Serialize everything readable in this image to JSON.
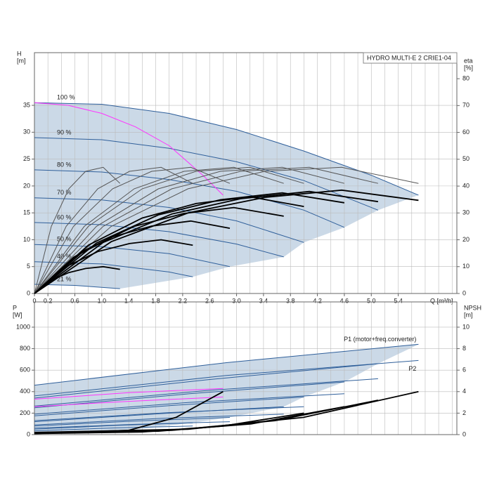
{
  "chart_data": [
    {
      "type": "line",
      "title": "HYDRO MULTI-E 2 CRIE1-04",
      "ylabel": [
        "H",
        "[m]"
      ],
      "y2label": [
        "eta",
        "[%]"
      ],
      "xlabel": "Q [m³/h]",
      "xlim": [
        0,
        6.27
      ],
      "ylim": [
        0,
        44.8
      ],
      "y2lim": [
        0,
        89.7
      ],
      "xticks": [
        0,
        0.2,
        0.6,
        {
          "value": 1,
          "label": "1.0"
        },
        1.4,
        1.8,
        2.2,
        2.6,
        {
          "value": 3,
          "label": "3.0"
        },
        3.4,
        3.8,
        4.2,
        4.6,
        {
          "value": 5,
          "label": "5.0"
        },
        5.4
      ],
      "xgrid": [
        0.2,
        0.4,
        0.6,
        0.8,
        1,
        1.2,
        1.4,
        1.6,
        1.8,
        2,
        2.2,
        2.4,
        2.6,
        2.8,
        3,
        3.2,
        3.4,
        3.6,
        3.8,
        4,
        4.2,
        4.4,
        4.6,
        4.8,
        5,
        5.2,
        5.4,
        5.6,
        5.8,
        6,
        6.2
      ],
      "yticks": [
        0,
        5,
        10,
        15,
        20,
        25,
        30,
        35
      ],
      "y2ticks": [
        0,
        10,
        20,
        30,
        40,
        50,
        60,
        70,
        80
      ],
      "grid": true,
      "shade": "#cbd9e7",
      "series": [
        {
          "name": "100 %",
          "color": "#2f5f9a",
          "x": [
            0,
            1,
            2,
            3,
            4,
            5,
            5.7
          ],
          "values": [
            35.5,
            35.2,
            33.5,
            30.5,
            26.5,
            22,
            18.3
          ]
        },
        {
          "name": "90 %",
          "color": "#2f5f9a",
          "x": [
            0,
            1,
            2,
            3,
            4,
            5.1
          ],
          "values": [
            29,
            28.6,
            27,
            24.5,
            21,
            15.5
          ]
        },
        {
          "name": "80 %",
          "color": "#2f5f9a",
          "x": [
            0,
            1,
            2,
            3,
            4,
            4.6
          ],
          "values": [
            23,
            22.6,
            21.2,
            19,
            15.5,
            12.3
          ]
        },
        {
          "name": "70 %",
          "color": "#2f5f9a",
          "x": [
            0,
            1,
            2,
            3,
            4
          ],
          "values": [
            17.8,
            17.4,
            16,
            13.5,
            9.5
          ]
        },
        {
          "name": "60 %",
          "color": "#2f5f9a",
          "x": [
            0,
            1,
            2,
            3,
            3.7
          ],
          "values": [
            13.2,
            12.8,
            11.5,
            9.2,
            6.8
          ]
        },
        {
          "name": "50 %",
          "color": "#2f5f9a",
          "x": [
            0,
            1,
            2,
            2.9
          ],
          "values": [
            9.1,
            8.7,
            7.4,
            5
          ]
        },
        {
          "name": "40 %",
          "color": "#2f5f9a",
          "x": [
            0,
            1,
            2,
            2.35
          ],
          "values": [
            5.9,
            5.5,
            4,
            3.1
          ]
        },
        {
          "name": "21 %",
          "color": "#2f5f9a",
          "x": [
            0,
            0.6,
            1.27
          ],
          "values": [
            1.7,
            1.5,
            0.9
          ]
        },
        {
          "color": "#ff33ff",
          "x": [
            0,
            0.5,
            1,
            1.5,
            2,
            2.5,
            2.8
          ],
          "values": [
            35.5,
            35,
            33.5,
            31,
            27.5,
            22,
            18.3
          ]
        },
        {
          "color": "#555",
          "axis": "y2",
          "x": [
            0,
            1.14,
            2.28,
            3.42,
            4.56,
            5.7
          ],
          "values": [
            0,
            25,
            39,
            45.5,
            47,
            41
          ]
        },
        {
          "color": "#555",
          "axis": "y2",
          "x": [
            0,
            1.02,
            2.04,
            3.06,
            4.08,
            5.1
          ],
          "values": [
            0,
            25,
            39,
            45.5,
            47,
            41
          ]
        },
        {
          "color": "#555",
          "axis": "y2",
          "x": [
            0,
            0.92,
            1.84,
            2.76,
            3.68,
            4.6
          ],
          "values": [
            0,
            25,
            39,
            45.5,
            47,
            41
          ]
        },
        {
          "color": "#555",
          "axis": "y2",
          "x": [
            0,
            0.8,
            1.6,
            2.4,
            3.2,
            4
          ],
          "values": [
            0,
            25,
            39,
            45.5,
            47,
            41
          ]
        },
        {
          "color": "#555",
          "axis": "y2",
          "x": [
            0,
            0.74,
            1.48,
            2.22,
            2.96,
            3.7
          ],
          "values": [
            0,
            25,
            39,
            45.5,
            47,
            41
          ]
        },
        {
          "color": "#555",
          "axis": "y2",
          "x": [
            0,
            0.58,
            1.16,
            1.74,
            2.32,
            2.9
          ],
          "values": [
            0,
            25,
            39,
            45.5,
            47,
            41
          ]
        },
        {
          "color": "#555",
          "axis": "y2",
          "x": [
            0,
            0.47,
            0.94,
            1.41,
            1.88,
            2.35
          ],
          "values": [
            0,
            25,
            39,
            45.5,
            47,
            41
          ]
        },
        {
          "color": "#555",
          "axis": "y2",
          "x": [
            0,
            0.25,
            0.51,
            0.76,
            1.02,
            1.27
          ],
          "values": [
            0,
            25,
            39,
            45.5,
            47,
            41
          ]
        },
        {
          "color": "#000",
          "thick": true,
          "axis": "y2",
          "x": [
            0,
            1.14,
            2.28,
            3.42,
            4.56,
            5.7
          ],
          "values": [
            0,
            19.3,
            30,
            35.8,
            38.5,
            34.7
          ]
        },
        {
          "color": "#000",
          "thick": true,
          "axis": "y2",
          "x": [
            0,
            1.02,
            2.04,
            3.06,
            4.08,
            5.1
          ],
          "values": [
            0,
            19,
            29.6,
            35.3,
            38,
            34.2
          ]
        },
        {
          "color": "#000",
          "thick": true,
          "axis": "y2",
          "x": [
            0,
            0.92,
            1.84,
            2.76,
            3.68,
            4.6
          ],
          "values": [
            0,
            18.8,
            29.3,
            34.9,
            37.5,
            33.8
          ]
        },
        {
          "color": "#000",
          "thick": true,
          "axis": "y2",
          "x": [
            0,
            0.8,
            1.6,
            2.4,
            3.2,
            4
          ],
          "values": [
            0,
            18,
            28.1,
            33.5,
            36,
            32.4
          ]
        },
        {
          "color": "#000",
          "thick": true,
          "axis": "y2",
          "x": [
            0,
            0.74,
            1.48,
            2.22,
            2.96,
            3.7
          ],
          "values": [
            0,
            16,
            25,
            29.8,
            32,
            28.8
          ]
        },
        {
          "color": "#000",
          "thick": true,
          "axis": "y2",
          "x": [
            0,
            0.58,
            1.16,
            1.74,
            2.32,
            2.9
          ],
          "values": [
            0,
            13.5,
            21.1,
            25.1,
            27,
            24.3
          ]
        },
        {
          "color": "#000",
          "thick": true,
          "axis": "y2",
          "x": [
            0,
            0.47,
            0.94,
            1.41,
            1.88,
            2.35
          ],
          "values": [
            0,
            10,
            15.6,
            18.6,
            20,
            18
          ]
        },
        {
          "color": "#000",
          "thick": true,
          "axis": "y2",
          "x": [
            0,
            0.25,
            0.51,
            0.76,
            1.02,
            1.27
          ],
          "values": [
            0,
            5,
            7.8,
            9.3,
            10,
            9
          ]
        }
      ]
    },
    {
      "type": "line",
      "ylabel": [
        "P",
        "[W]"
      ],
      "y2label": [
        "NPSH",
        "[m]"
      ],
      "xlim": [
        0,
        6.27
      ],
      "ylim": [
        0,
        1235
      ],
      "y2lim": [
        0,
        12.35
      ],
      "xgrid": [
        0.2,
        0.4,
        0.6,
        0.8,
        1,
        1.2,
        1.4,
        1.6,
        1.8,
        2,
        2.2,
        2.4,
        2.6,
        2.8,
        3,
        3.2,
        3.4,
        3.6,
        3.8,
        4,
        4.2,
        4.4,
        4.6,
        4.8,
        5,
        5.2,
        5.4,
        5.6,
        5.8,
        6,
        6.2
      ],
      "yticks": [
        0,
        200,
        400,
        600,
        800,
        1000
      ],
      "y2ticks": [
        0,
        2,
        4,
        6,
        8,
        10
      ],
      "grid": true,
      "shade": "#cbd9e7",
      "series": [
        {
          "name": "P1 (motor+freq.converter)",
          "color": "#2f5f9a",
          "x": [
            0,
            2.85,
            5.7
          ],
          "values": [
            460,
            670,
            840
          ]
        },
        {
          "color": "#2f5f9a",
          "x": [
            0,
            2.55,
            5.1
          ],
          "values": [
            340,
            510,
            660
          ]
        },
        {
          "color": "#2f5f9a",
          "x": [
            0,
            2.3,
            4.6
          ],
          "values": [
            250,
            380,
            490
          ]
        },
        {
          "color": "#2f5f9a",
          "x": [
            0,
            2,
            4
          ],
          "values": [
            175,
            270,
            350
          ]
        },
        {
          "color": "#2f5f9a",
          "x": [
            0,
            1.85,
            3.7
          ],
          "values": [
            120,
            195,
            260
          ]
        },
        {
          "color": "#2f5f9a",
          "x": [
            0,
            1.45,
            2.9
          ],
          "values": [
            80,
            125,
            160
          ]
        },
        {
          "color": "#2f5f9a",
          "x": [
            0,
            1.18,
            2.35
          ],
          "values": [
            50,
            85,
            110
          ]
        },
        {
          "color": "#2f5f9a",
          "x": [
            0,
            0.64,
            1.27
          ],
          "values": [
            15,
            24,
            30
          ]
        },
        {
          "name": "P2",
          "color": "#2f5f9a",
          "x": [
            0,
            2.85,
            5.7
          ],
          "values": [
            360,
            550,
            690
          ]
        },
        {
          "color": "#2f5f9a",
          "x": [
            0,
            2.55,
            5.1
          ],
          "values": [
            265,
            410,
            520
          ]
        },
        {
          "color": "#2f5f9a",
          "x": [
            0,
            2.3,
            4.6
          ],
          "values": [
            190,
            300,
            380
          ]
        },
        {
          "color": "#2f5f9a",
          "x": [
            0,
            2,
            4
          ],
          "values": [
            130,
            205,
            260
          ]
        },
        {
          "color": "#2f5f9a",
          "x": [
            0,
            1.85,
            3.7
          ],
          "values": [
            90,
            150,
            190
          ]
        },
        {
          "color": "#2f5f9a",
          "x": [
            0,
            1.45,
            2.9
          ],
          "values": [
            60,
            95,
            120
          ]
        },
        {
          "color": "#2f5f9a",
          "x": [
            0,
            1.18,
            2.35
          ],
          "values": [
            35,
            62,
            80
          ]
        },
        {
          "color": "#2f5f9a",
          "x": [
            0,
            0.64,
            1.27
          ],
          "values": [
            10,
            16,
            20
          ]
        },
        {
          "color": "#ff33ff",
          "x": [
            0,
            1.4,
            2.8
          ],
          "values": [
            330,
            390,
            430
          ]
        },
        {
          "color": "#ff33ff",
          "x": [
            0,
            1.4,
            2.8
          ],
          "values": [
            260,
            310,
            350
          ]
        },
        {
          "color": "#000",
          "thick": true,
          "axis": "y2",
          "x": [
            0,
            2.28,
            3.99,
            5.7
          ],
          "values": [
            0.2,
            0.5,
            1.6,
            4
          ]
        },
        {
          "color": "#000",
          "thick": true,
          "axis": "y2",
          "x": [
            0,
            2.04,
            3.57,
            5.1
          ],
          "values": [
            0.16,
            0.4,
            1.3,
            3.2
          ]
        },
        {
          "color": "#000",
          "thick": true,
          "axis": "y2",
          "x": [
            0,
            1.84,
            3.22,
            4.6
          ],
          "values": [
            0.13,
            0.32,
            1,
            2.6
          ]
        },
        {
          "color": "#000",
          "thick": true,
          "axis": "y2",
          "x": [
            0,
            1.6,
            2.8,
            4
          ],
          "values": [
            0.1,
            0.25,
            0.8,
            2
          ]
        },
        {
          "color": "#000",
          "thick": true,
          "axis": "y2",
          "x": [
            0,
            1.4,
            2.1,
            2.8
          ],
          "values": [
            0.1,
            0.4,
            1.6,
            4
          ]
        }
      ]
    }
  ]
}
